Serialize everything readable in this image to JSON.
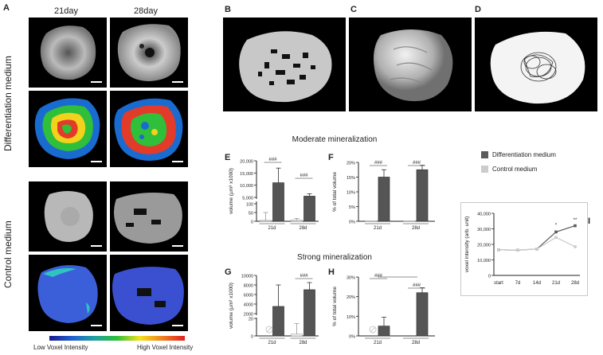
{
  "panel_labels": {
    "a": "A",
    "b": "B",
    "c": "C",
    "d": "D",
    "e": "E",
    "f": "F",
    "g": "G",
    "h": "H",
    "i": "I"
  },
  "columns": [
    "21day",
    "28day"
  ],
  "rows": {
    "diff": "Differentiation medium",
    "control": "Control medium"
  },
  "colorbar": {
    "low": "Low Voxel Intensity",
    "high": "High Voxel Intensity"
  },
  "section_titles": {
    "moderate": "Moderate mineralization",
    "strong": "Strong mineralization"
  },
  "legend": {
    "diff": "Differentiation medium",
    "control": "Control medium",
    "diff_color": "#5a5a5a",
    "control_color": "#cccccc"
  },
  "chart_data": [
    {
      "panel": "E",
      "type": "bar",
      "categories": [
        "21d",
        "28d"
      ],
      "ylabel": "volume (µm³ x1000)",
      "series": [
        {
          "name": "Control medium",
          "values": [
            5,
            6
          ],
          "errors": [
            45,
            10
          ]
        },
        {
          "name": "Differentiation medium",
          "values": [
            11000,
            5500
          ],
          "errors": [
            6000,
            1000
          ]
        }
      ],
      "yticks": [
        "0",
        "50",
        "100",
        "5,000",
        "10,000",
        "15,000",
        "20,000"
      ],
      "significance": [
        "###",
        "###"
      ]
    },
    {
      "panel": "F",
      "type": "bar",
      "categories": [
        "21d",
        "28d"
      ],
      "ylabel": "% of total volume",
      "series": [
        {
          "name": "Control medium",
          "values": [
            0.1,
            0.1
          ]
        },
        {
          "name": "Differentiation medium",
          "values": [
            15,
            17.5
          ],
          "errors": [
            2.5,
            1.5
          ]
        }
      ],
      "ylim": [
        0,
        20
      ],
      "yticks": [
        "0%",
        "5%",
        "10%",
        "15%",
        "20%"
      ],
      "significance": [
        "###",
        "###"
      ]
    },
    {
      "panel": "G",
      "type": "bar",
      "categories": [
        "21d",
        "28d"
      ],
      "ylabel": "volume (µm³ x1000)",
      "series": [
        {
          "name": "Control medium",
          "values": [
            0,
            2
          ],
          "errors": [
            0,
            12
          ]
        },
        {
          "name": "Differentiation medium",
          "values": [
            3500,
            7000
          ],
          "errors": [
            4500,
            1500
          ]
        }
      ],
      "yticks": [
        "0",
        "20",
        "2000",
        "4000",
        "6000",
        "8000",
        "10000"
      ],
      "significance": [
        "",
        "###"
      ]
    },
    {
      "panel": "H",
      "type": "bar",
      "categories": [
        "21d",
        "28d"
      ],
      "ylabel": "% of total volume",
      "series": [
        {
          "name": "Control medium",
          "values": [
            0,
            0
          ]
        },
        {
          "name": "Differentiation medium",
          "values": [
            5,
            22
          ],
          "errors": [
            4.5,
            2.5
          ]
        }
      ],
      "ylim": [
        0,
        30
      ],
      "yticks": [
        "0%",
        "10%",
        "20%",
        "30%"
      ],
      "significance": [
        "###",
        "###"
      ]
    },
    {
      "panel": "I",
      "type": "line",
      "x": [
        "start",
        "7d",
        "14d",
        "21d",
        "28d"
      ],
      "ylabel": "voxel intensity (arb. unit)",
      "series": [
        {
          "name": "Differentiation medium",
          "values": [
            16500,
            16300,
            17000,
            28000,
            32000
          ]
        },
        {
          "name": "Control medium",
          "values": [
            16500,
            16300,
            17000,
            24500,
            18500
          ]
        }
      ],
      "ylim": [
        0,
        40000
      ],
      "yticks": [
        "0",
        "10,000",
        "20,000",
        "30,000",
        "40,000"
      ],
      "annotations": [
        "*",
        "**"
      ]
    }
  ]
}
